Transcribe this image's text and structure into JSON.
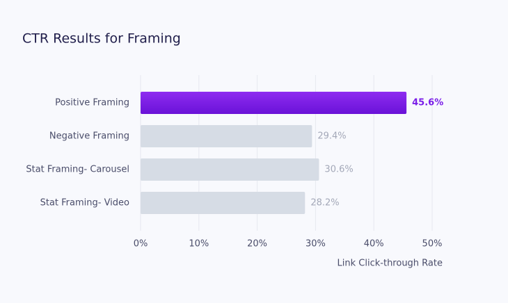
{
  "chart_data": {
    "type": "hbar",
    "title": "CTR Results for Framing",
    "x_label": "Link Click-through Rate",
    "categories": [
      "Positive Framing",
      "Negative Framing",
      "Stat Framing- Carousel",
      "Stat Framing- Video"
    ],
    "values": [
      45.6,
      29.4,
      30.6,
      28.2
    ],
    "value_labels": [
      "45.6%",
      "29.4%",
      "30.6%",
      "28.2%"
    ],
    "colors": [
      "#7a1ee8",
      "#d6dce5",
      "#d6dce5",
      "#d6dce5"
    ],
    "value_label_colors": [
      "#7a1ee8",
      "#a3a8b8",
      "#a3a8b8",
      "#a3a8b8"
    ],
    "xlim": [
      0,
      50
    ],
    "xticks": [
      {
        "value": 0,
        "label": "0%"
      },
      {
        "value": 10,
        "label": "10%"
      },
      {
        "value": 20,
        "label": "20%"
      },
      {
        "value": 30,
        "label": "30%"
      },
      {
        "value": 40,
        "label": "40%"
      },
      {
        "value": 50,
        "label": "50%"
      }
    ],
    "grid": true
  }
}
